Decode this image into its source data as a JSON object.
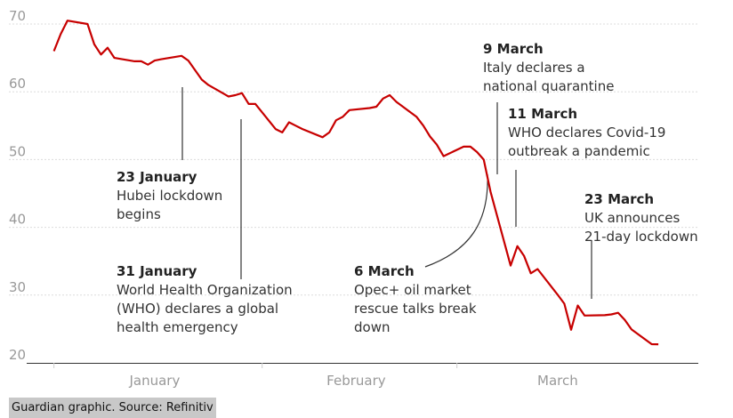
{
  "chart_data": {
    "type": "line",
    "title": "",
    "xlabel": "",
    "ylabel": "",
    "ylim": [
      20,
      70
    ],
    "yticks": [
      "70",
      "60",
      "50",
      "40",
      "30",
      "20"
    ],
    "grid": true,
    "x_months": [
      "January",
      "February",
      "March"
    ],
    "series": [
      {
        "color": "#c70000",
        "points": [
          [
            "2020-01-01",
            66.0
          ],
          [
            "2020-01-02",
            68.5
          ],
          [
            "2020-01-03",
            70.5
          ],
          [
            "2020-01-06",
            70.0
          ],
          [
            "2020-01-07",
            67.0
          ],
          [
            "2020-01-08",
            65.5
          ],
          [
            "2020-01-09",
            66.5
          ],
          [
            "2020-01-10",
            65.0
          ],
          [
            "2020-01-13",
            64.5
          ],
          [
            "2020-01-14",
            64.5
          ],
          [
            "2020-01-15",
            64.0
          ],
          [
            "2020-01-16",
            64.6
          ],
          [
            "2020-01-17",
            64.8
          ],
          [
            "2020-01-20",
            65.3
          ],
          [
            "2020-01-21",
            64.6
          ],
          [
            "2020-01-22",
            63.2
          ],
          [
            "2020-01-23",
            61.8
          ],
          [
            "2020-01-24",
            61.0
          ],
          [
            "2020-01-27",
            59.3
          ],
          [
            "2020-01-28",
            59.5
          ],
          [
            "2020-01-29",
            59.8
          ],
          [
            "2020-01-30",
            58.2
          ],
          [
            "2020-01-31",
            58.2
          ],
          [
            "2020-02-03",
            54.5
          ],
          [
            "2020-02-04",
            54.0
          ],
          [
            "2020-02-05",
            55.5
          ],
          [
            "2020-02-06",
            55.0
          ],
          [
            "2020-02-07",
            54.5
          ],
          [
            "2020-02-10",
            53.3
          ],
          [
            "2020-02-11",
            54.0
          ],
          [
            "2020-02-12",
            55.8
          ],
          [
            "2020-02-13",
            56.3
          ],
          [
            "2020-02-14",
            57.3
          ],
          [
            "2020-02-17",
            57.6
          ],
          [
            "2020-02-18",
            57.8
          ],
          [
            "2020-02-19",
            59.0
          ],
          [
            "2020-02-20",
            59.5
          ],
          [
            "2020-02-21",
            58.5
          ],
          [
            "2020-02-24",
            56.3
          ],
          [
            "2020-02-25",
            55.0
          ],
          [
            "2020-02-26",
            53.4
          ],
          [
            "2020-02-27",
            52.2
          ],
          [
            "2020-02-28",
            50.5
          ],
          [
            "2020-03-02",
            51.9
          ],
          [
            "2020-03-03",
            51.9
          ],
          [
            "2020-03-04",
            51.1
          ],
          [
            "2020-03-05",
            49.99
          ],
          [
            "2020-03-06",
            45.27
          ],
          [
            "2020-03-09",
            34.36
          ],
          [
            "2020-03-10",
            37.22
          ],
          [
            "2020-03-11",
            35.79
          ],
          [
            "2020-03-12",
            33.22
          ],
          [
            "2020-03-13",
            33.85
          ],
          [
            "2020-03-16",
            30.05
          ],
          [
            "2020-03-17",
            28.73
          ],
          [
            "2020-03-18",
            24.88
          ],
          [
            "2020-03-19",
            28.47
          ],
          [
            "2020-03-20",
            26.98
          ],
          [
            "2020-03-23",
            27.03
          ],
          [
            "2020-03-24",
            27.15
          ],
          [
            "2020-03-25",
            27.39
          ],
          [
            "2020-03-26",
            26.34
          ],
          [
            "2020-03-27",
            24.93
          ],
          [
            "2020-03-30",
            22.76
          ],
          [
            "2020-03-31",
            22.74
          ]
        ]
      }
    ],
    "annotations": [
      {
        "id": "hubei",
        "date": "2020-01-23",
        "title": "23 January",
        "lines": [
          "Hubei lockdown",
          "begins"
        ]
      },
      {
        "id": "who-emergency",
        "date": "2020-01-31",
        "title": "31 January",
        "lines": [
          "World Health Organization",
          "(WHO) declares a global",
          "health emergency"
        ]
      },
      {
        "id": "opec",
        "date": "2020-03-06",
        "title": "6 March",
        "lines": [
          "Opec+ oil market",
          "rescue talks break",
          "down"
        ]
      },
      {
        "id": "italy",
        "date": "2020-03-09",
        "title": "9 March",
        "lines": [
          "Italy declares a",
          "national quarantine"
        ]
      },
      {
        "id": "who-pandemic",
        "date": "2020-03-11",
        "title": "11 March",
        "lines": [
          "WHO declares Covid-19",
          "outbreak a pandemic"
        ]
      },
      {
        "id": "uk",
        "date": "2020-03-23",
        "title": "23 March",
        "lines": [
          "UK announces",
          "21-day lockdown"
        ]
      }
    ]
  },
  "source": "Guardian graphic. Source: Refinitiv",
  "colors": {
    "line": "#c70000",
    "grid": "#dcdcdc",
    "axis": "#333333",
    "leader": "#333333"
  }
}
